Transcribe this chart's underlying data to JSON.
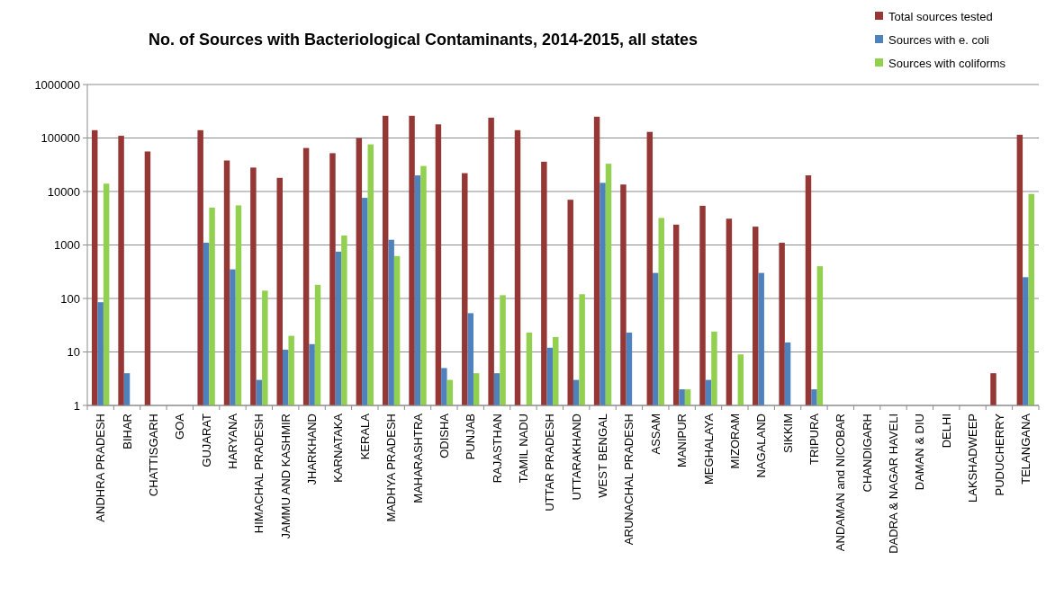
{
  "chart_data": {
    "type": "bar",
    "title": "No. of Sources with Bacteriological Contaminants, 2014-2015, all states",
    "categories": [
      "ANDHRA PRADESH",
      "BIHAR",
      "CHATTISGARH",
      "GOA",
      "GUJARAT",
      "HARYANA",
      "HIMACHAL PRADESH",
      "JAMMU AND KASHMIR",
      "JHARKHAND",
      "KARNATAKA",
      "KERALA",
      "MADHYA PRADESH",
      "MAHARASHTRA",
      "ODISHA",
      "PUNJAB",
      "RAJASTHAN",
      "TAMIL NADU",
      "UTTAR PRADESH",
      "UTTARAKHAND",
      "WEST BENGAL",
      "ARUNACHAL PRADESH",
      "ASSAM",
      "MANIPUR",
      "MEGHALAYA",
      "MIZORAM",
      "NAGALAND",
      "SIKKIM",
      "TRIPURA",
      "ANDAMAN and NICOBAR",
      "CHANDIGARH",
      "DADRA & NAGAR HAVELI",
      "DAMAN & DIU",
      "DELHI",
      "LAKSHADWEEP",
      "PUDUCHERRY",
      "TELANGANA"
    ],
    "series": [
      {
        "name": "Total sources tested",
        "color": "#953735",
        "values": [
          140000,
          110000,
          56000,
          null,
          140000,
          38000,
          28000,
          18000,
          65000,
          52000,
          100000,
          260000,
          260000,
          180000,
          22000,
          240000,
          140000,
          36000,
          7000,
          250000,
          13500,
          130000,
          2400,
          5400,
          3100,
          2200,
          1100,
          20000,
          null,
          null,
          null,
          null,
          null,
          null,
          4,
          115000
        ]
      },
      {
        "name": "Sources with e. coli",
        "color": "#4f81bd",
        "values": [
          85,
          4,
          null,
          null,
          1100,
          350,
          3,
          11,
          14,
          750,
          7600,
          1250,
          20000,
          5,
          53,
          4,
          null,
          12,
          3,
          14500,
          23,
          300,
          2,
          3,
          null,
          300,
          15,
          2,
          null,
          null,
          null,
          null,
          null,
          null,
          null,
          250
        ]
      },
      {
        "name": "Sources with coliforms",
        "color": "#92d050",
        "values": [
          14000,
          null,
          null,
          null,
          5000,
          5500,
          140,
          20,
          180,
          1500,
          76000,
          620,
          30000,
          3,
          4,
          115,
          23,
          19,
          120,
          33000,
          null,
          3200,
          2,
          24,
          9,
          null,
          null,
          400,
          null,
          null,
          null,
          null,
          null,
          null,
          null,
          9000
        ]
      }
    ],
    "log": true,
    "ylim": [
      1,
      1000000
    ],
    "yticks": [
      1,
      10,
      100,
      1000,
      10000,
      100000,
      1000000
    ],
    "grid": "y",
    "legend": "top right"
  }
}
